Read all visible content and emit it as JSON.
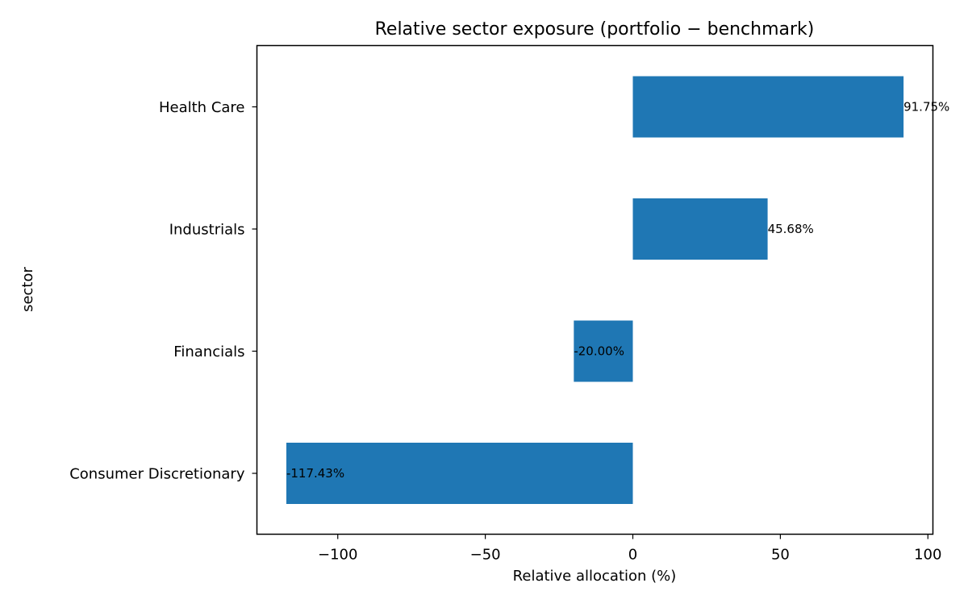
{
  "chart_data": {
    "type": "bar",
    "orientation": "horizontal",
    "title": "Relative sector exposure (portfolio − benchmark)",
    "xlabel": "Relative allocation (%)",
    "ylabel": "sector",
    "categories": [
      "Consumer Discretionary",
      "Financials",
      "Industrials",
      "Health Care"
    ],
    "values": [
      -117.43,
      -20.0,
      45.68,
      91.75
    ],
    "data_labels": [
      "-117.43%",
      "-20.00%",
      "45.68%",
      "91.75%"
    ],
    "xlim": [
      -127.4,
      101.7
    ],
    "x_ticks": [
      -100,
      -50,
      0,
      50,
      100
    ],
    "x_tick_labels": [
      "−100",
      "−50",
      "0",
      "50",
      "100"
    ],
    "grid": false,
    "legend": "none",
    "bar_color": "#1f77b4"
  }
}
